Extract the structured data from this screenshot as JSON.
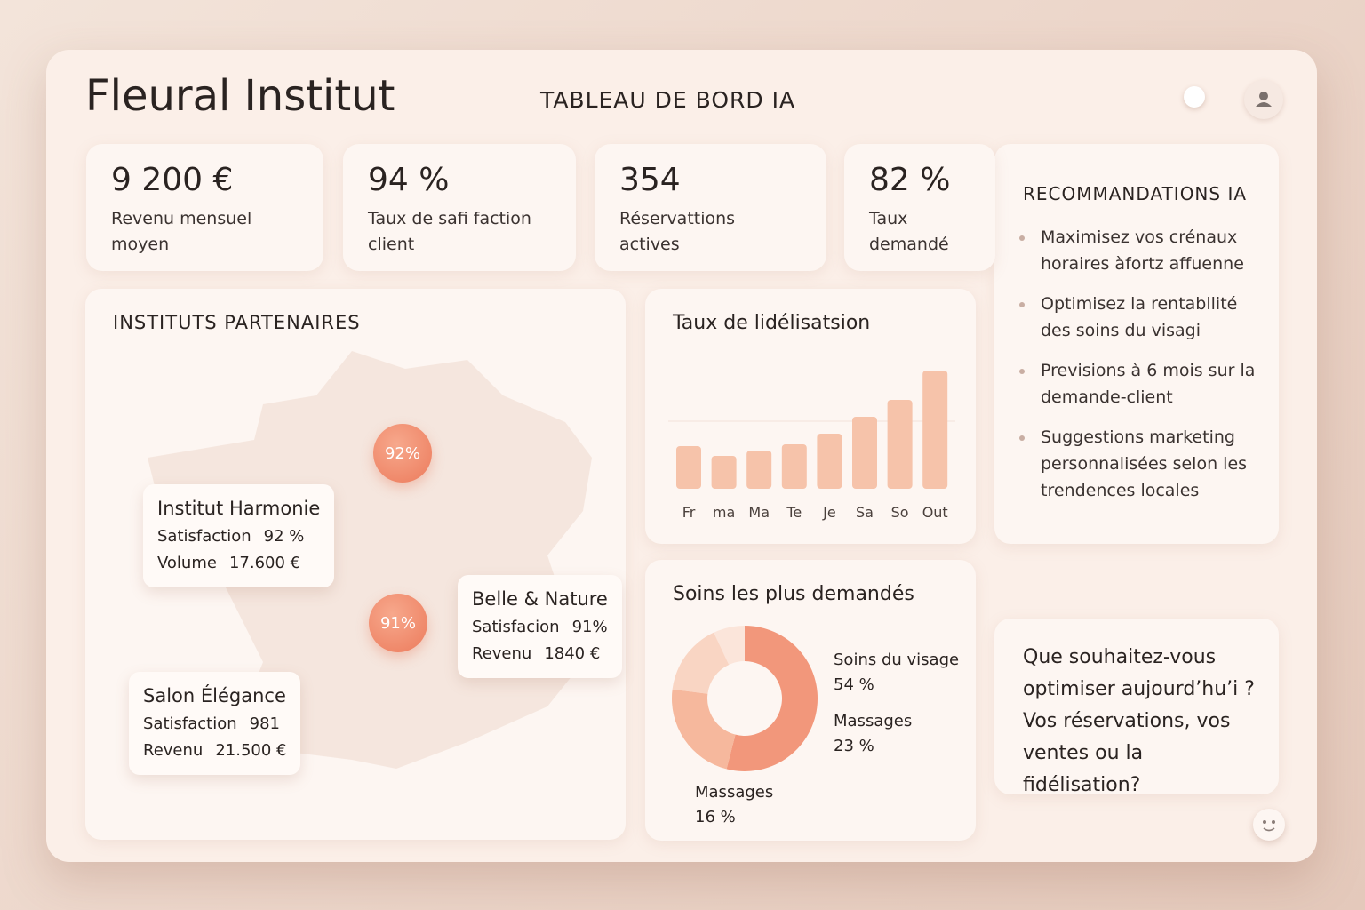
{
  "header": {
    "brand": "Fleural Institut",
    "title": "TABLEAU DE BORD IA"
  },
  "kpis": [
    {
      "value": "9 200 €",
      "label": "Revenu mensuel moyen"
    },
    {
      "value": "94 %",
      "label": "Taux de safi faction client"
    },
    {
      "value": "354",
      "label": "Réservattions actives"
    },
    {
      "value": "82 %",
      "label": "Taux demandé"
    }
  ],
  "partners": {
    "title": "INSTITUTS PARTENAIRES",
    "markers": [
      "92%",
      "91%"
    ],
    "cards": [
      {
        "name": "Institut Harmonie",
        "rows": [
          [
            "Satisfaction",
            "92 %"
          ],
          [
            "Volume",
            "17.600 €"
          ]
        ]
      },
      {
        "name": "Belle & Nature",
        "rows": [
          [
            "Satisfacion",
            "91%"
          ],
          [
            "Revenu",
            "1840 €"
          ]
        ]
      },
      {
        "name": "Salon Élégance",
        "rows": [
          [
            "Satisfaction",
            "981"
          ],
          [
            "Revenu",
            "21.500 €"
          ]
        ]
      }
    ]
  },
  "loyalty_chart": {
    "type": "bar",
    "title": "Taux de lidélisatsion",
    "categories": [
      "Fr",
      "ma",
      "Ma",
      "Te",
      "Je",
      "Sa",
      "So",
      "Out"
    ],
    "values": [
      48,
      37,
      43,
      50,
      62,
      81,
      100,
      133
    ],
    "color": "#f6c3aa"
  },
  "top_services": {
    "type": "pie",
    "title": "Soins les plus demandés",
    "categories": [
      "Soins du visage",
      "Massages",
      "Massages"
    ],
    "values": [
      54,
      23,
      16
    ],
    "value_labels": [
      "54 %",
      "23 %",
      "16 %"
    ],
    "colors": [
      "#f2977b",
      "#f6b89d",
      "#f9d5c3"
    ]
  },
  "recommendations": {
    "title": "RECOMMANDATIONS IA",
    "items": [
      "Maximisez vos crénaux horaires àfortz affuenne",
      "Optimisez la rentabllité des soins du visagi",
      "Previsions à 6 mois sur la demande-client",
      "Suggestions marketing personnalisées selon les trendences locales"
    ]
  },
  "assistant": {
    "message": "Que souhaitez-vous optimiser aujourd’hu’i ? Vos réservations, vos ventes ou la fidélisation?"
  }
}
